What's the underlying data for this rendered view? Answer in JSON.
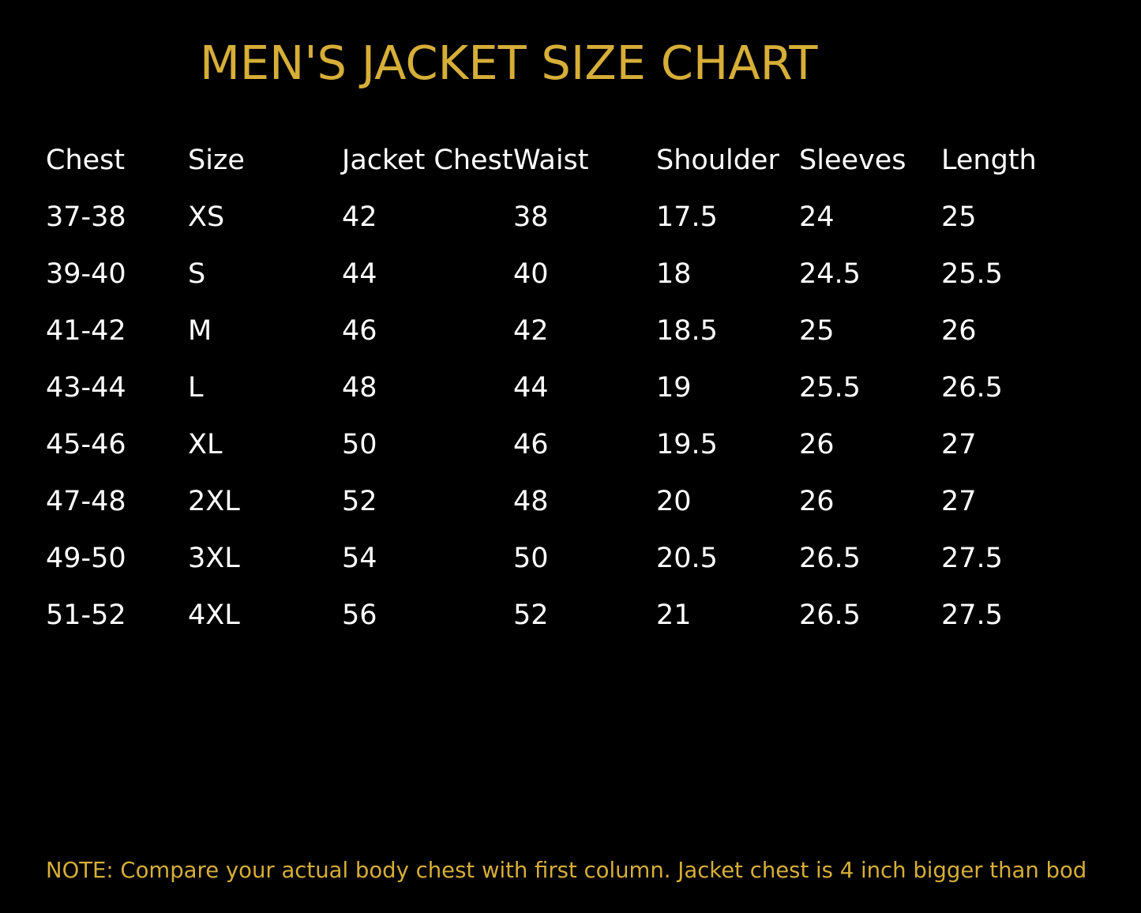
{
  "title": "MEN'S JACKET SIZE CHART",
  "colors": {
    "accent": "#d6ae38",
    "background": "#000000",
    "text": "#ffffff"
  },
  "table": {
    "headers": [
      "Chest",
      "Size",
      "Jacket Chest",
      "Waist",
      "Shoulder",
      "Sleeves",
      "Length"
    ],
    "rows": [
      [
        "37-38",
        "XS",
        "42",
        "38",
        "17.5",
        "24",
        "25"
      ],
      [
        "39-40",
        "S",
        "44",
        "40",
        "18",
        "24.5",
        "25.5"
      ],
      [
        "41-42",
        "M",
        "46",
        "42",
        "18.5",
        "25",
        "26"
      ],
      [
        "43-44",
        "L",
        "48",
        "44",
        "19",
        "25.5",
        "26.5"
      ],
      [
        "45-46",
        "XL",
        "50",
        "46",
        "19.5",
        "26",
        "27"
      ],
      [
        "47-48",
        "2XL",
        "52",
        "48",
        "20",
        "26",
        "27"
      ],
      [
        "49-50",
        "3XL",
        "54",
        "50",
        "20.5",
        "26.5",
        "27.5"
      ],
      [
        "51-52",
        "4XL",
        "56",
        "52",
        "21",
        "26.5",
        "27.5"
      ]
    ]
  },
  "note": "NOTE: Compare your actual body chest with first column. Jacket chest is 4 inch bigger than bod"
}
